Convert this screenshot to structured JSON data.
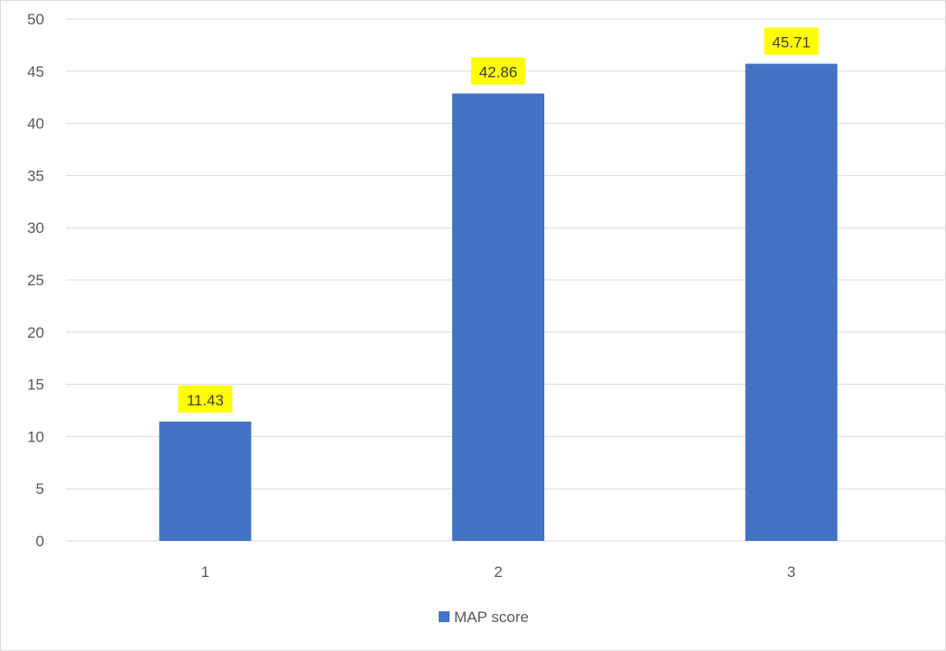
{
  "chart_data": {
    "type": "bar",
    "title": "",
    "xlabel": "",
    "ylabel": "",
    "categories": [
      "1",
      "2",
      "3"
    ],
    "series": [
      {
        "name": "MAP score",
        "values": [
          11.43,
          42.86,
          45.71
        ],
        "color": "#4472c4",
        "data_labels": [
          "11.43",
          "42.86",
          "45.71"
        ]
      }
    ],
    "ylim": [
      0,
      50
    ],
    "yticks": [
      0,
      5,
      10,
      15,
      20,
      25,
      30,
      35,
      40,
      45,
      50
    ],
    "grid": true,
    "legend": "bottom",
    "data_label_highlight": "#ffff00",
    "gridline_color": "#d9d9d9"
  }
}
